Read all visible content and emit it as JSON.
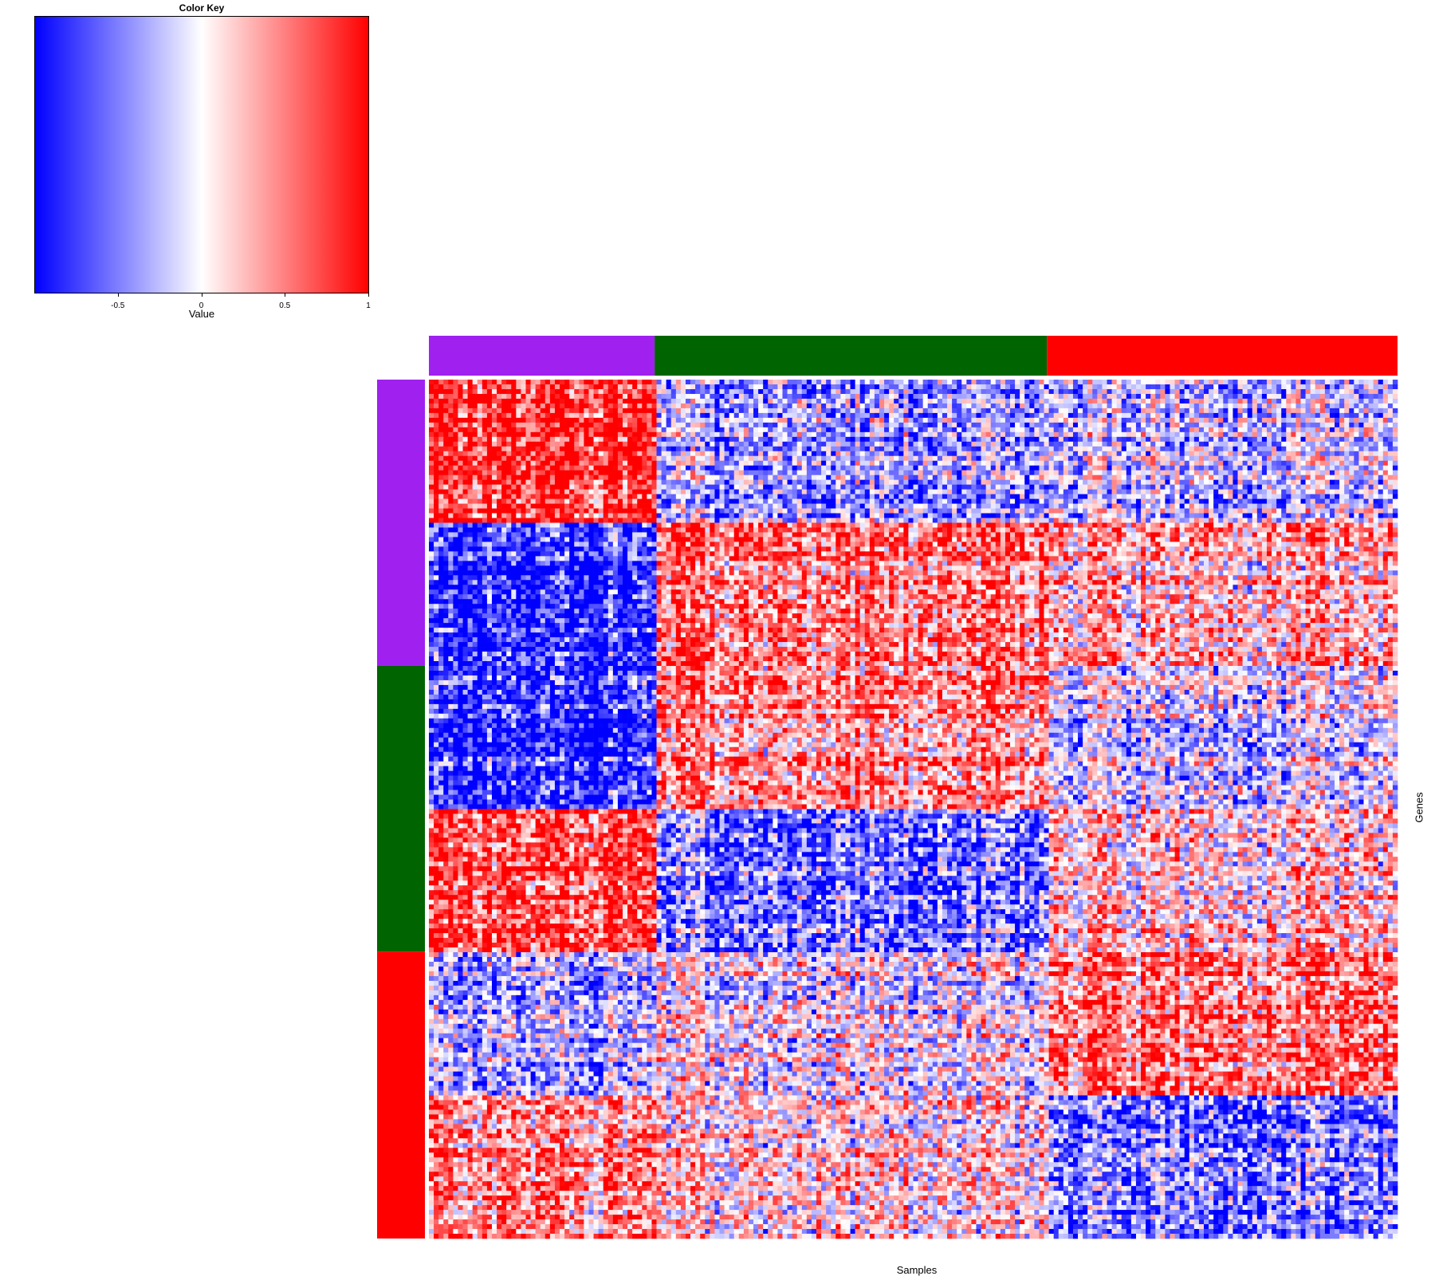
{
  "chart_data": {
    "type": "heatmap",
    "color_key": {
      "title": "Color Key",
      "xlabel": "Value",
      "range": [
        -1,
        1
      ],
      "ticks": [
        -0.5,
        0,
        0.5,
        1
      ],
      "tick_labels": [
        "-0.5",
        "0",
        "0.5",
        "1"
      ],
      "colors": {
        "low": "#0000ff",
        "mid": "#ffffff",
        "high": "#ff0000"
      }
    },
    "xlabel": "Samples",
    "ylabel": "Genes",
    "n_sample_columns": 200,
    "n_gene_rows": 180,
    "column_groups": [
      {
        "color": "#a020f0",
        "fraction": 0.233
      },
      {
        "color": "#006400",
        "fraction": 0.405
      },
      {
        "color": "#ff0000",
        "fraction": 0.362
      }
    ],
    "row_groups": [
      {
        "color": "#a020f0",
        "fraction": 0.333
      },
      {
        "color": "#006400",
        "fraction": 0.333
      },
      {
        "color": "#ff0000",
        "fraction": 0.334
      }
    ],
    "row_blocks": [
      {
        "fraction": 0.167,
        "mean_by_column_group": [
          0.85,
          -0.35,
          -0.25
        ]
      },
      {
        "fraction": 0.166,
        "mean_by_column_group": [
          -0.85,
          0.55,
          0.25
        ]
      },
      {
        "fraction": 0.167,
        "mean_by_column_group": [
          -0.8,
          0.5,
          -0.15
        ]
      },
      {
        "fraction": 0.166,
        "mean_by_column_group": [
          0.75,
          -0.55,
          0.15
        ]
      },
      {
        "fraction": 0.167,
        "mean_by_column_group": [
          -0.3,
          0.0,
          0.55
        ]
      },
      {
        "fraction": 0.167,
        "mean_by_column_group": [
          0.45,
          0.1,
          -0.55
        ]
      }
    ]
  }
}
